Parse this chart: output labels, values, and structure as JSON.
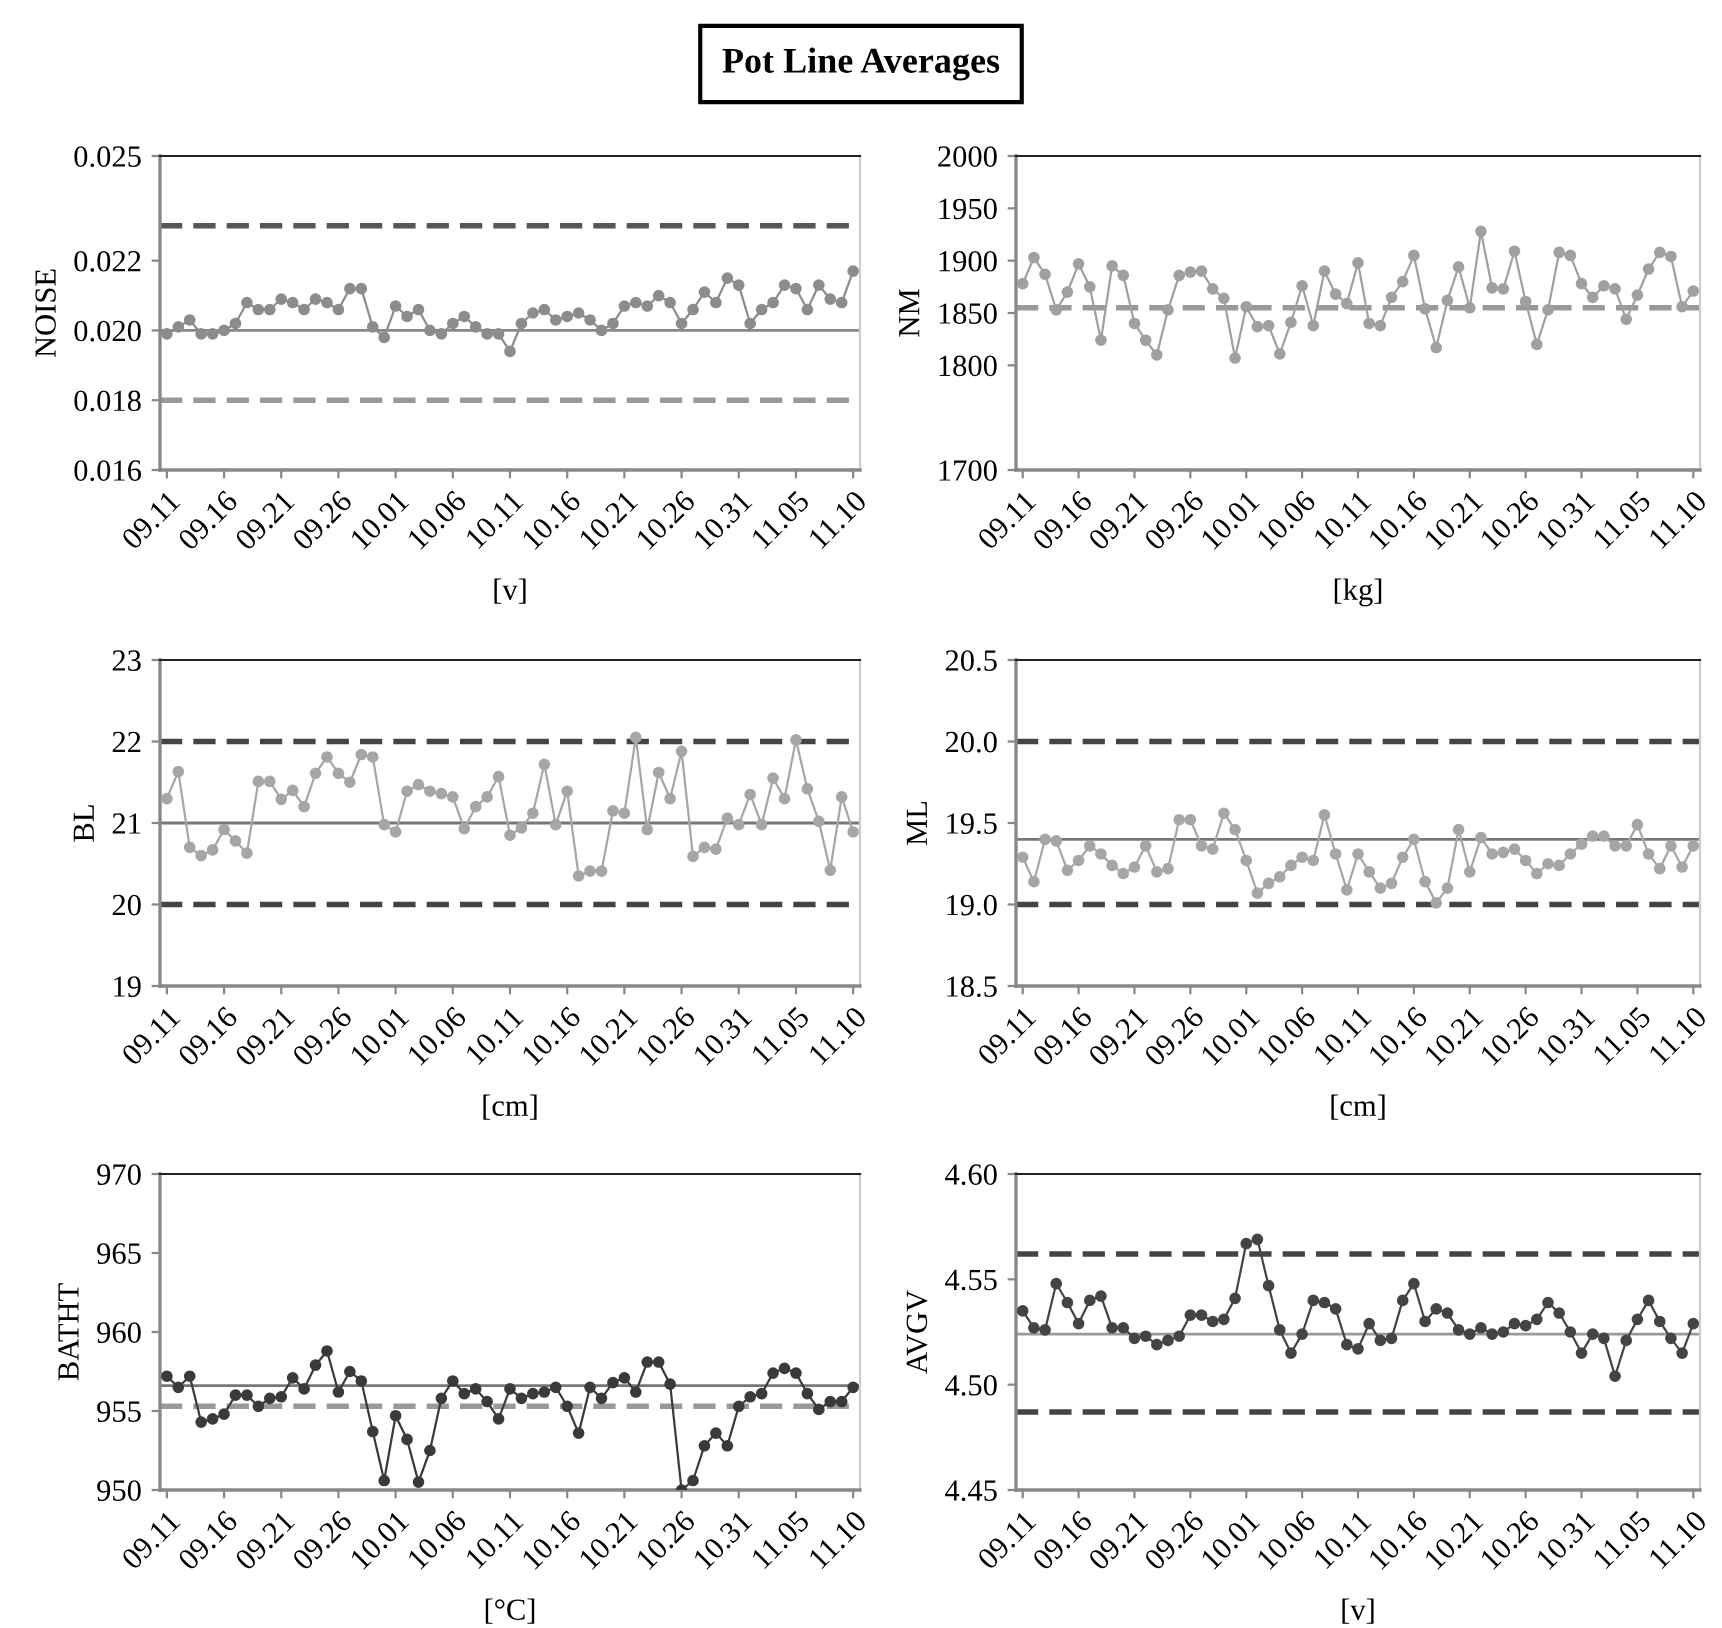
{
  "chart_data": [
    {
      "type": "line",
      "title": "Pot Line Averages",
      "ylabel": "NOISE",
      "xlabel": "[v]",
      "marker": "circle",
      "line_style": "solid",
      "categories": [
        "09.11",
        null,
        null,
        null,
        null,
        "09.16",
        null,
        null,
        null,
        null,
        "09.21",
        null,
        null,
        null,
        null,
        "09.26",
        null,
        null,
        null,
        null,
        "10.01",
        null,
        null,
        null,
        null,
        "10.06",
        null,
        null,
        null,
        null,
        "10.11",
        null,
        null,
        null,
        null,
        "10.16",
        null,
        null,
        null,
        null,
        "10.21",
        null,
        null,
        null,
        null,
        "10.26",
        null,
        null,
        null,
        null,
        "10.31",
        null,
        null,
        null,
        null,
        "11.05",
        null,
        null,
        null,
        null,
        "11.10"
      ],
      "series": [
        {
          "color": "#8c8c8c",
          "values": [
            0.0199,
            0.0201,
            0.0203,
            0.0199,
            0.0199,
            0.02,
            0.0202,
            0.0208,
            0.0206,
            0.0206,
            0.0209,
            0.0208,
            0.0206,
            0.0209,
            0.0208,
            0.0206,
            0.0212,
            0.0212,
            0.0201,
            0.0198,
            0.0207,
            0.0204,
            0.0206,
            0.02,
            0.0199,
            0.0202,
            0.0204,
            0.0201,
            0.0199,
            0.0199,
            0.0194,
            0.0202,
            0.0205,
            0.0206,
            0.0203,
            0.0204,
            0.0205,
            0.0203,
            0.02,
            0.0202,
            0.0207,
            0.0208,
            0.0207,
            0.021,
            0.0208,
            0.0202,
            0.0206,
            0.0211,
            0.0208,
            0.0215,
            0.0213,
            0.0202,
            0.0206,
            0.0208,
            0.0213,
            0.0212,
            0.0206,
            0.0213,
            0.0209,
            0.0208,
            0.0217
          ]
        }
      ],
      "ylim": [
        0.016,
        0.025
      ],
      "yticks": [
        {
          "value": 0.016,
          "label": "0.016"
        },
        {
          "value": 0.018,
          "label": "0.018"
        },
        {
          "value": 0.02,
          "label": "0.020"
        },
        {
          "value": 0.022,
          "label": "0.022"
        },
        {
          "value": 0.025,
          "label": "0.025"
        }
      ],
      "ref_lines": [
        {
          "axis": "y",
          "value": 0.023,
          "color": "#555555",
          "line_style": "dashed"
        },
        {
          "axis": "y",
          "value": 0.02,
          "color": "#888888",
          "line_style": "solid"
        },
        {
          "axis": "y",
          "value": 0.018,
          "color": "#999999",
          "line_style": "dashed"
        }
      ]
    },
    {
      "type": "line",
      "ylabel": "NM",
      "xlabel": "[kg]",
      "marker": "circle",
      "line_style": "solid",
      "categories": [
        "09.11",
        null,
        null,
        null,
        null,
        "09.16",
        null,
        null,
        null,
        null,
        "09.21",
        null,
        null,
        null,
        null,
        "09.26",
        null,
        null,
        null,
        null,
        "10.01",
        null,
        null,
        null,
        null,
        "10.06",
        null,
        null,
        null,
        null,
        "10.11",
        null,
        null,
        null,
        null,
        "10.16",
        null,
        null,
        null,
        null,
        "10.21",
        null,
        null,
        null,
        null,
        "10.26",
        null,
        null,
        null,
        null,
        "10.31",
        null,
        null,
        null,
        null,
        "11.05",
        null,
        null,
        null,
        null,
        "11.10"
      ],
      "series": [
        {
          "color": "#a0a0a0",
          "values": [
            1878,
            1903,
            1887,
            1853,
            1870,
            1897,
            1875,
            1824,
            1895,
            1886,
            1840,
            1824,
            1810,
            1853,
            1886,
            1889,
            1890,
            1873,
            1864,
            1807,
            1856,
            1837,
            1838,
            1811,
            1841,
            1876,
            1838,
            1890,
            1868,
            1859,
            1898,
            1840,
            1838,
            1865,
            1880,
            1905,
            1854,
            1817,
            1862,
            1894,
            1855,
            1928,
            1874,
            1873,
            1909,
            1861,
            1820,
            1853,
            1908,
            1905,
            1878,
            1865,
            1876,
            1873,
            1844,
            1867,
            1892,
            1908,
            1904,
            1856,
            1871
          ]
        }
      ],
      "ylim": [
        1700,
        2000
      ],
      "yticks": [
        1700,
        1800,
        1850,
        1900,
        1950,
        2000
      ],
      "ref_lines": [
        {
          "axis": "y",
          "value": 1855,
          "color": "#999999",
          "line_style": "dashed"
        }
      ]
    },
    {
      "type": "line",
      "ylabel": "BL",
      "xlabel": "[cm]",
      "marker": "circle",
      "line_style": "solid",
      "categories": [
        "09.11",
        null,
        null,
        null,
        null,
        "09.16",
        null,
        null,
        null,
        null,
        "09.21",
        null,
        null,
        null,
        null,
        "09.26",
        null,
        null,
        null,
        null,
        "10.01",
        null,
        null,
        null,
        null,
        "10.06",
        null,
        null,
        null,
        null,
        "10.11",
        null,
        null,
        null,
        null,
        "10.16",
        null,
        null,
        null,
        null,
        "10.21",
        null,
        null,
        null,
        null,
        "10.26",
        null,
        null,
        null,
        null,
        "10.31",
        null,
        null,
        null,
        null,
        "11.05",
        null,
        null,
        null,
        null,
        "11.10"
      ],
      "series": [
        {
          "color": "#a6a6a6",
          "values": [
            21.3,
            21.63,
            20.7,
            20.6,
            20.67,
            20.92,
            20.78,
            20.63,
            21.51,
            21.51,
            21.29,
            21.4,
            21.2,
            21.61,
            21.81,
            21.61,
            21.5,
            21.84,
            21.81,
            20.98,
            20.89,
            21.39,
            21.47,
            21.39,
            21.36,
            21.32,
            20.93,
            21.2,
            21.32,
            21.57,
            20.85,
            20.94,
            21.12,
            21.72,
            20.98,
            21.39,
            20.35,
            20.41,
            20.41,
            21.15,
            21.12,
            22.05,
            20.92,
            21.62,
            21.3,
            21.88,
            20.59,
            20.7,
            20.68,
            21.06,
            20.98,
            21.35,
            20.98,
            21.55,
            21.3,
            22.02,
            21.42,
            21.02,
            20.42,
            21.32,
            20.89
          ]
        }
      ],
      "ylim": [
        19,
        23
      ],
      "yticks": [
        19,
        20,
        21,
        22,
        23
      ],
      "ref_lines": [
        {
          "axis": "y",
          "value": 22,
          "color": "#444444",
          "line_style": "dashed"
        },
        {
          "axis": "y",
          "value": 21,
          "color": "#777777",
          "line_style": "solid"
        },
        {
          "axis": "y",
          "value": 20,
          "color": "#444444",
          "line_style": "dashed"
        }
      ]
    },
    {
      "type": "line",
      "ylabel": "ML",
      "xlabel": "[cm]",
      "marker": "circle",
      "line_style": "solid",
      "categories": [
        "09.11",
        null,
        null,
        null,
        null,
        "09.16",
        null,
        null,
        null,
        null,
        "09.21",
        null,
        null,
        null,
        null,
        "09.26",
        null,
        null,
        null,
        null,
        "10.01",
        null,
        null,
        null,
        null,
        "10.06",
        null,
        null,
        null,
        null,
        "10.11",
        null,
        null,
        null,
        null,
        "10.16",
        null,
        null,
        null,
        null,
        "10.21",
        null,
        null,
        null,
        null,
        "10.26",
        null,
        null,
        null,
        null,
        "10.31",
        null,
        null,
        null,
        null,
        "11.05",
        null,
        null,
        null,
        null,
        "11.10"
      ],
      "series": [
        {
          "color": "#a6a6a6",
          "values": [
            19.29,
            19.14,
            19.4,
            19.39,
            19.21,
            19.27,
            19.36,
            19.31,
            19.24,
            19.19,
            19.23,
            19.36,
            19.2,
            19.22,
            19.52,
            19.52,
            19.36,
            19.34,
            19.56,
            19.46,
            19.27,
            19.07,
            19.13,
            19.17,
            19.24,
            19.29,
            19.27,
            19.55,
            19.31,
            19.09,
            19.31,
            19.2,
            19.1,
            19.13,
            19.29,
            19.4,
            19.14,
            19.01,
            19.1,
            19.46,
            19.2,
            19.41,
            19.31,
            19.32,
            19.34,
            19.27,
            19.19,
            19.25,
            19.24,
            19.31,
            19.37,
            19.42,
            19.42,
            19.36,
            19.36,
            19.49,
            19.31,
            19.22,
            19.36,
            19.23,
            19.36
          ]
        }
      ],
      "ylim": [
        18.5,
        20.5
      ],
      "yticks": [
        {
          "value": 18.5,
          "label": "18.5"
        },
        {
          "value": 19.0,
          "label": "19.0"
        },
        {
          "value": 19.5,
          "label": "19.5"
        },
        {
          "value": 20.0,
          "label": "20.0"
        },
        {
          "value": 20.5,
          "label": "20.5"
        }
      ],
      "ref_lines": [
        {
          "axis": "y",
          "value": 20.0,
          "color": "#444444",
          "line_style": "dashed"
        },
        {
          "axis": "y",
          "value": 19.4,
          "color": "#777777",
          "line_style": "solid"
        },
        {
          "axis": "y",
          "value": 19.0,
          "color": "#444444",
          "line_style": "dashed"
        }
      ]
    },
    {
      "type": "line",
      "ylabel": "BATHT",
      "xlabel": "[°C]",
      "marker": "circle",
      "line_style": "solid",
      "categories": [
        "09.11",
        null,
        null,
        null,
        null,
        "09.16",
        null,
        null,
        null,
        null,
        "09.21",
        null,
        null,
        null,
        null,
        "09.26",
        null,
        null,
        null,
        null,
        "10.01",
        null,
        null,
        null,
        null,
        "10.06",
        null,
        null,
        null,
        null,
        "10.11",
        null,
        null,
        null,
        null,
        "10.16",
        null,
        null,
        null,
        null,
        "10.21",
        null,
        null,
        null,
        null,
        "10.26",
        null,
        null,
        null,
        null,
        "10.31",
        null,
        null,
        null,
        null,
        "11.05",
        null,
        null,
        null,
        null,
        "11.10"
      ],
      "series": [
        {
          "color": "#3a3a3a",
          "values": [
            957.2,
            956.5,
            957.2,
            954.3,
            954.5,
            954.8,
            956.0,
            956.0,
            955.3,
            955.8,
            955.9,
            957.1,
            956.4,
            957.9,
            958.8,
            956.2,
            957.5,
            956.9,
            953.7,
            950.6,
            954.7,
            953.2,
            950.5,
            952.5,
            955.8,
            956.9,
            956.1,
            956.4,
            955.6,
            954.5,
            956.4,
            955.8,
            956.1,
            956.2,
            956.5,
            955.3,
            953.6,
            956.5,
            955.8,
            956.8,
            957.1,
            956.2,
            958.1,
            958.1,
            956.7,
            950.0,
            950.6,
            952.8,
            953.6,
            952.8,
            955.3,
            955.9,
            956.1,
            957.4,
            957.7,
            957.4,
            956.1,
            955.1,
            955.6,
            955.6,
            956.5
          ]
        }
      ],
      "ylim": [
        950,
        970
      ],
      "yticks": [
        950,
        955,
        960,
        965,
        970
      ],
      "ref_lines": [
        {
          "axis": "y",
          "value": 956.6,
          "color": "#777777",
          "line_style": "solid"
        },
        {
          "axis": "y",
          "value": 955.3,
          "color": "#999999",
          "line_style": "dashed"
        }
      ]
    },
    {
      "type": "line",
      "ylabel": "AVGV",
      "xlabel": "[v]",
      "marker": "circle",
      "line_style": "solid",
      "categories": [
        "09.11",
        null,
        null,
        null,
        null,
        "09.16",
        null,
        null,
        null,
        null,
        "09.21",
        null,
        null,
        null,
        null,
        "09.26",
        null,
        null,
        null,
        null,
        "10.01",
        null,
        null,
        null,
        null,
        "10.06",
        null,
        null,
        null,
        null,
        "10.11",
        null,
        null,
        null,
        null,
        "10.16",
        null,
        null,
        null,
        null,
        "10.21",
        null,
        null,
        null,
        null,
        "10.26",
        null,
        null,
        null,
        null,
        "10.31",
        null,
        null,
        null,
        null,
        "11.05",
        null,
        null,
        null,
        null,
        "11.10"
      ],
      "series": [
        {
          "color": "#444444",
          "values": [
            4.535,
            4.527,
            4.526,
            4.548,
            4.539,
            4.529,
            4.54,
            4.542,
            4.527,
            4.527,
            4.522,
            4.523,
            4.519,
            4.521,
            4.523,
            4.533,
            4.533,
            4.53,
            4.531,
            4.541,
            4.567,
            4.569,
            4.547,
            4.526,
            4.515,
            4.524,
            4.54,
            4.539,
            4.536,
            4.519,
            4.517,
            4.529,
            4.521,
            4.522,
            4.54,
            4.548,
            4.53,
            4.536,
            4.534,
            4.526,
            4.524,
            4.527,
            4.524,
            4.525,
            4.529,
            4.528,
            4.531,
            4.539,
            4.534,
            4.525,
            4.515,
            4.524,
            4.522,
            4.504,
            4.521,
            4.531,
            4.54,
            4.53,
            4.522,
            4.515,
            4.529
          ]
        }
      ],
      "ylim": [
        4.45,
        4.6
      ],
      "yticks": [
        {
          "value": 4.45,
          "label": "4.45"
        },
        {
          "value": 4.5,
          "label": "4.50"
        },
        {
          "value": 4.55,
          "label": "4.55"
        },
        {
          "value": 4.6,
          "label": "4.60"
        }
      ],
      "ref_lines": [
        {
          "axis": "y",
          "value": 4.562,
          "color": "#444444",
          "line_style": "dashed"
        },
        {
          "axis": "y",
          "value": 4.524,
          "color": "#999999",
          "line_style": "solid"
        },
        {
          "axis": "y",
          "value": 4.487,
          "color": "#444444",
          "line_style": "dashed"
        }
      ]
    }
  ]
}
